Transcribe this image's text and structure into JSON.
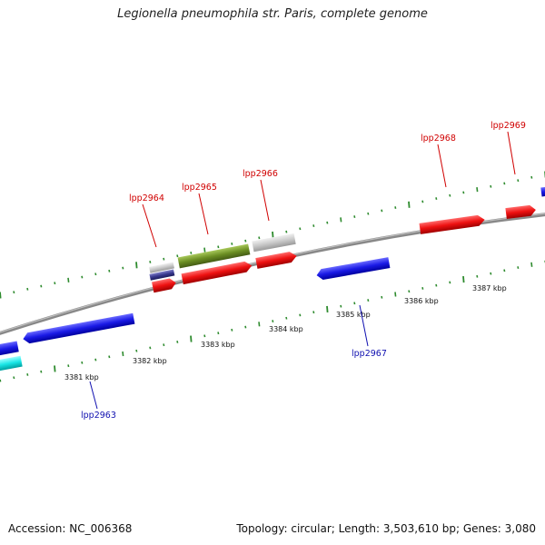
{
  "title": "Legionella pneumophila str. Paris, complete genome",
  "footer": {
    "accession": "Accession: NC_006368",
    "summary": "Topology: circular; Length: 3,503,610 bp; Genes: 3,080"
  },
  "ticks": [
    "3381 kbp",
    "3382 kbp",
    "3383 kbp",
    "3384 kbp",
    "3385 kbp",
    "3386 kbp",
    "3387 kbp"
  ],
  "colors": {
    "backbone": "#8c8c8c",
    "tick": "#2e8b2e",
    "plus_label": "#d00000",
    "minus_label": "#1010b0",
    "red": "#ee1111",
    "blue": "#1a1ae6",
    "cyan": "#19e6e6",
    "olive": "#6b8e23",
    "gray": "#c8c8c8",
    "navy": "#3a3a90"
  },
  "genes": [
    {
      "name": "lpp2963",
      "strand": "minus"
    },
    {
      "name": "lpp2964",
      "strand": "plus"
    },
    {
      "name": "lpp2965",
      "strand": "plus"
    },
    {
      "name": "lpp2966",
      "strand": "plus"
    },
    {
      "name": "lpp2967",
      "strand": "minus"
    },
    {
      "name": "lpp2968",
      "strand": "plus"
    },
    {
      "name": "lpp2969",
      "strand": "plus"
    }
  ]
}
